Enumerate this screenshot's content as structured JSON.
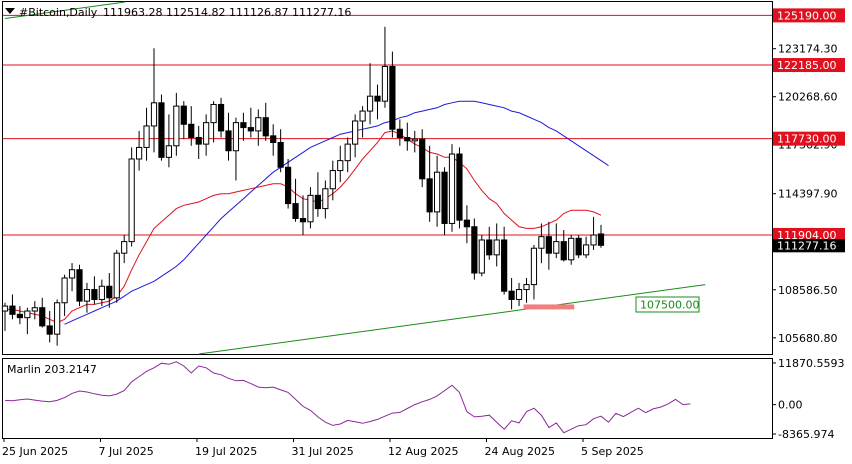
{
  "header": {
    "symbol_label": "#Bitcoin,Daily",
    "ohlc_label": "111963.28 112514.82 111126.87 111277.16"
  },
  "colors": {
    "bull_candle": "#ffffff",
    "bear_candle": "#000000",
    "ma_fast": "#e0101e",
    "ma_slow": "#1a1ad8",
    "level_lines": "#e0101e",
    "trend_lines": "#1c8a1c",
    "oscillator": "#8a2a9a",
    "support_zone": "#f08080"
  },
  "chart_data": [
    {
      "type": "candlestick",
      "symbol": "#Bitcoin",
      "timeframe": "Daily",
      "ylim": [
        104700,
        126000
      ],
      "y_ticks": [
        125190.0,
        123174.3,
        120268.6,
        117362.9,
        114397.9,
        111277.16,
        108586.5,
        105680.8
      ],
      "x_labels": [
        "25 Jun 2025",
        "7 Jul 2025",
        "19 Jul 2025",
        "31 Jul 2025",
        "12 Aug 2025",
        "24 Aug 2025",
        "5 Sep 2025"
      ],
      "horizontal_levels": [
        125190.0,
        122185.0,
        117730.0,
        111904.0
      ],
      "level_labels": [
        "125190.00",
        "122185.00",
        "117730.00",
        "111904.00"
      ],
      "current_price_label": "111277.16",
      "support_zone_label": "107500.00",
      "candles": [
        {
          "o": 107300,
          "h": 107800,
          "l": 106100,
          "c": 107600
        },
        {
          "o": 107600,
          "h": 108300,
          "l": 106800,
          "c": 107100
        },
        {
          "o": 107100,
          "h": 107600,
          "l": 106500,
          "c": 106900
        },
        {
          "o": 106900,
          "h": 107500,
          "l": 105900,
          "c": 107300
        },
        {
          "o": 107300,
          "h": 107900,
          "l": 106800,
          "c": 107500
        },
        {
          "o": 107500,
          "h": 108100,
          "l": 106300,
          "c": 106400
        },
        {
          "o": 106400,
          "h": 107300,
          "l": 105400,
          "c": 105900
        },
        {
          "o": 105900,
          "h": 108000,
          "l": 105200,
          "c": 107800
        },
        {
          "o": 107800,
          "h": 109500,
          "l": 107000,
          "c": 109300
        },
        {
          "o": 109300,
          "h": 110200,
          "l": 108500,
          "c": 109800
        },
        {
          "o": 109800,
          "h": 110100,
          "l": 107600,
          "c": 107900
        },
        {
          "o": 107900,
          "h": 109000,
          "l": 107200,
          "c": 108600
        },
        {
          "o": 108600,
          "h": 109400,
          "l": 107700,
          "c": 108000
        },
        {
          "o": 108000,
          "h": 109200,
          "l": 107600,
          "c": 108800
        },
        {
          "o": 108800,
          "h": 109600,
          "l": 107500,
          "c": 108100
        },
        {
          "o": 108100,
          "h": 111000,
          "l": 107800,
          "c": 110800
        },
        {
          "o": 110800,
          "h": 111900,
          "l": 110200,
          "c": 111500
        },
        {
          "o": 111500,
          "h": 117200,
          "l": 111200,
          "c": 116500
        },
        {
          "o": 116500,
          "h": 118200,
          "l": 115800,
          "c": 117200
        },
        {
          "o": 117200,
          "h": 119600,
          "l": 116400,
          "c": 118500
        },
        {
          "o": 118500,
          "h": 123200,
          "l": 116900,
          "c": 119900
        },
        {
          "o": 119900,
          "h": 120400,
          "l": 116400,
          "c": 116600
        },
        {
          "o": 116600,
          "h": 119200,
          "l": 116000,
          "c": 117300
        },
        {
          "o": 117300,
          "h": 120500,
          "l": 116700,
          "c": 119700
        },
        {
          "o": 119700,
          "h": 120000,
          "l": 117700,
          "c": 118600
        },
        {
          "o": 118600,
          "h": 119700,
          "l": 117300,
          "c": 117800
        },
        {
          "o": 117800,
          "h": 118500,
          "l": 116500,
          "c": 117400
        },
        {
          "o": 117400,
          "h": 119200,
          "l": 116700,
          "c": 118700
        },
        {
          "o": 118700,
          "h": 120000,
          "l": 117500,
          "c": 119800
        },
        {
          "o": 119800,
          "h": 120200,
          "l": 117800,
          "c": 118200
        },
        {
          "o": 118200,
          "h": 119300,
          "l": 116400,
          "c": 117000
        },
        {
          "o": 117000,
          "h": 119000,
          "l": 115200,
          "c": 118700
        },
        {
          "o": 118700,
          "h": 119300,
          "l": 117600,
          "c": 118400
        },
        {
          "o": 118400,
          "h": 119600,
          "l": 117800,
          "c": 118200
        },
        {
          "o": 118200,
          "h": 119500,
          "l": 117300,
          "c": 119000
        },
        {
          "o": 119000,
          "h": 119900,
          "l": 117600,
          "c": 117900
        },
        {
          "o": 117900,
          "h": 118600,
          "l": 116700,
          "c": 117500
        },
        {
          "o": 117500,
          "h": 118300,
          "l": 115700,
          "c": 116000
        },
        {
          "o": 116000,
          "h": 116500,
          "l": 113500,
          "c": 113800
        },
        {
          "o": 113800,
          "h": 115300,
          "l": 112700,
          "c": 112900
        },
        {
          "o": 112900,
          "h": 114300,
          "l": 111900,
          "c": 112700
        },
        {
          "o": 112700,
          "h": 114800,
          "l": 112300,
          "c": 114300
        },
        {
          "o": 114300,
          "h": 115700,
          "l": 113000,
          "c": 113500
        },
        {
          "o": 113500,
          "h": 115200,
          "l": 112900,
          "c": 114700
        },
        {
          "o": 114700,
          "h": 116400,
          "l": 114000,
          "c": 115800
        },
        {
          "o": 115800,
          "h": 117300,
          "l": 115100,
          "c": 116400
        },
        {
          "o": 116400,
          "h": 117800,
          "l": 115700,
          "c": 117400
        },
        {
          "o": 117400,
          "h": 119200,
          "l": 116600,
          "c": 118800
        },
        {
          "o": 118800,
          "h": 119700,
          "l": 117800,
          "c": 119400
        },
        {
          "o": 119400,
          "h": 122300,
          "l": 118600,
          "c": 120300
        },
        {
          "o": 120300,
          "h": 121000,
          "l": 118900,
          "c": 120000
        },
        {
          "o": 120000,
          "h": 124500,
          "l": 119600,
          "c": 122100
        },
        {
          "o": 122100,
          "h": 123000,
          "l": 117800,
          "c": 118300
        },
        {
          "o": 118300,
          "h": 118900,
          "l": 117300,
          "c": 117800
        },
        {
          "o": 117800,
          "h": 118700,
          "l": 117000,
          "c": 117600
        },
        {
          "o": 117600,
          "h": 118200,
          "l": 116900,
          "c": 117700
        },
        {
          "o": 117700,
          "h": 118300,
          "l": 114800,
          "c": 115300
        },
        {
          "o": 115300,
          "h": 117300,
          "l": 112700,
          "c": 113300
        },
        {
          "o": 113300,
          "h": 116700,
          "l": 112400,
          "c": 115700
        },
        {
          "o": 115700,
          "h": 116000,
          "l": 111900,
          "c": 112600
        },
        {
          "o": 112600,
          "h": 117400,
          "l": 112100,
          "c": 116800
        },
        {
          "o": 116800,
          "h": 117200,
          "l": 112300,
          "c": 112800
        },
        {
          "o": 112800,
          "h": 113700,
          "l": 111400,
          "c": 112400
        },
        {
          "o": 112400,
          "h": 112900,
          "l": 109200,
          "c": 109600
        },
        {
          "o": 109600,
          "h": 111900,
          "l": 109400,
          "c": 111600
        },
        {
          "o": 111600,
          "h": 112400,
          "l": 110400,
          "c": 110700
        },
        {
          "o": 110700,
          "h": 112600,
          "l": 110000,
          "c": 111600
        },
        {
          "o": 111600,
          "h": 112400,
          "l": 108300,
          "c": 108500
        },
        {
          "o": 108500,
          "h": 109300,
          "l": 107400,
          "c": 108000
        },
        {
          "o": 108000,
          "h": 109000,
          "l": 107600,
          "c": 108600
        },
        {
          "o": 108600,
          "h": 109300,
          "l": 107800,
          "c": 108900
        },
        {
          "o": 108900,
          "h": 111300,
          "l": 108000,
          "c": 111100
        },
        {
          "o": 111100,
          "h": 112600,
          "l": 110200,
          "c": 111800
        },
        {
          "o": 111800,
          "h": 112700,
          "l": 109800,
          "c": 110800
        },
        {
          "o": 110800,
          "h": 112600,
          "l": 110500,
          "c": 111500
        },
        {
          "o": 111500,
          "h": 112200,
          "l": 110300,
          "c": 110400
        },
        {
          "o": 110400,
          "h": 111900,
          "l": 110100,
          "c": 111700
        },
        {
          "o": 111700,
          "h": 111900,
          "l": 110500,
          "c": 110700
        },
        {
          "o": 110700,
          "h": 111800,
          "l": 110500,
          "c": 111300
        },
        {
          "o": 111300,
          "h": 113000,
          "l": 111000,
          "c": 111900
        },
        {
          "o": 111963.28,
          "h": 112514.82,
          "l": 111126.87,
          "c": 111277.16
        }
      ],
      "ma_fast": [
        107400,
        107400,
        107300,
        107200,
        107100,
        107000,
        106800,
        106600,
        106800,
        107300,
        107500,
        107700,
        107700,
        107800,
        107900,
        108200,
        108800,
        109800,
        110700,
        111500,
        112300,
        112700,
        113100,
        113500,
        113700,
        113800,
        113900,
        114100,
        114300,
        114400,
        114400,
        114500,
        114600,
        114700,
        114800,
        114900,
        115000,
        115000,
        114800,
        114400,
        114100,
        114000,
        113900,
        114100,
        114400,
        114800,
        115300,
        115900,
        116500,
        117000,
        117500,
        118100,
        118200,
        118000,
        117700,
        117400,
        117200,
        116900,
        116800,
        116600,
        116600,
        116300,
        115900,
        115200,
        114600,
        114100,
        113800,
        113200,
        112800,
        112400,
        112300,
        112300,
        112400,
        112600,
        112800,
        113200,
        113400,
        113400,
        113400,
        113300,
        113100
      ],
      "ma_slow": [
        106500,
        106700,
        106900,
        107100,
        107300,
        107500,
        107700,
        107900,
        108200,
        108500,
        108700,
        108900,
        109100,
        109400,
        109700,
        110000,
        110400,
        110900,
        111400,
        111900,
        112400,
        112900,
        113300,
        113700,
        114100,
        114500,
        114900,
        115300,
        115700,
        116000,
        116300,
        116600,
        116900,
        117200,
        117400,
        117600,
        117800,
        118000,
        118100,
        118200,
        118300,
        118400,
        118500,
        118700,
        118800,
        119000,
        119100,
        119300,
        119400,
        119500,
        119600,
        119800,
        119900,
        120000,
        120000,
        120000,
        119900,
        119800,
        119700,
        119600,
        119400,
        119300,
        119100,
        118900,
        118700,
        118400,
        118200,
        117900,
        117600,
        117300,
        117000,
        116700,
        116400,
        116100
      ],
      "trend_lines": [
        {
          "from_bar": 0,
          "from_price": 125000,
          "to_bar": 29,
          "to_price": 126800
        },
        {
          "from_bar": 26,
          "from_price": 104700,
          "to_bar": 94,
          "to_price": 108900
        }
      ]
    },
    {
      "type": "line",
      "name": "Marlin",
      "title": "Marlin 203.2147",
      "ylim": [
        -9500,
        13000
      ],
      "y_ticks": [
        11870.5593,
        0.0,
        -8365.974
      ],
      "y_tick_labels": [
        "11870.5593",
        "0.00",
        "-8365.974"
      ],
      "values": [
        1200,
        1100,
        1400,
        1600,
        1300,
        1000,
        800,
        1200,
        2000,
        3200,
        3900,
        3600,
        3100,
        2700,
        2500,
        3000,
        4000,
        6500,
        8000,
        9500,
        10500,
        11800,
        11500,
        12200,
        11000,
        9000,
        11000,
        10500,
        9000,
        8500,
        7500,
        6800,
        6900,
        6000,
        5000,
        4800,
        5000,
        4200,
        3500,
        1500,
        -500,
        -1600,
        -3500,
        -5000,
        -5900,
        -5500,
        -4500,
        -4900,
        -5300,
        -4800,
        -4200,
        -3300,
        -2400,
        -2200,
        -1100,
        0,
        800,
        1500,
        2500,
        4000,
        5500,
        3500,
        -2000,
        -3500,
        -3300,
        -3000,
        -5000,
        -7000,
        -4600,
        -5200,
        -2000,
        -1000,
        -3000,
        -6500,
        -5200,
        -8000,
        -7000,
        -6000,
        -5700,
        -4000,
        -3300,
        -5000,
        -2500,
        -3400,
        -2200,
        -1000,
        -2300,
        -1200,
        -700,
        200,
        1500,
        0,
        203
      ]
    }
  ]
}
